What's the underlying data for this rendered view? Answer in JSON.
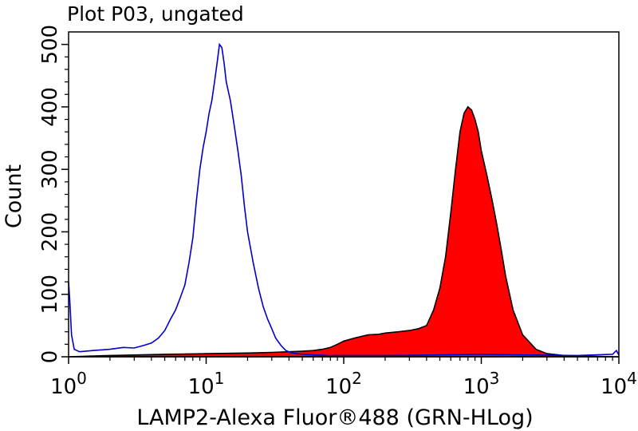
{
  "chart_data": {
    "type": "area",
    "title": "Plot P03, ungated",
    "xlabel": "LAMP2-Alexa Fluor®488 (GRN-HLog)",
    "ylabel": "Count",
    "x_scale": "log",
    "xlim": [
      1,
      10000
    ],
    "ylim": [
      0,
      520
    ],
    "x_ticks": [
      {
        "value": 1,
        "base": "10",
        "exp": "0"
      },
      {
        "value": 10,
        "base": "10",
        "exp": "1"
      },
      {
        "value": 100,
        "base": "10",
        "exp": "2"
      },
      {
        "value": 1000,
        "base": "10",
        "exp": "3"
      },
      {
        "value": 10000,
        "base": "10",
        "exp": "4"
      }
    ],
    "y_ticks": [
      {
        "value": 0,
        "label": "0"
      },
      {
        "value": 100,
        "label": "100"
      },
      {
        "value": 200,
        "label": "200"
      },
      {
        "value": 300,
        "label": "300"
      },
      {
        "value": 400,
        "label": "400"
      },
      {
        "value": 500,
        "label": "500"
      }
    ],
    "grid": false,
    "legend": "none",
    "series": [
      {
        "style": "line",
        "color": "#0000cc",
        "x": [
          1,
          1.02,
          1.05,
          1.1,
          1.2,
          1.5,
          2,
          2.5,
          3,
          3.5,
          4,
          4.5,
          5,
          5.5,
          6,
          6.5,
          7,
          7.5,
          8,
          8.5,
          9,
          9.5,
          10,
          10.5,
          11,
          11.5,
          12,
          12.5,
          13,
          13.5,
          14,
          15,
          16,
          17,
          18,
          19,
          20,
          22,
          24,
          26,
          28,
          30,
          32,
          35,
          38,
          42,
          50,
          60,
          80,
          100,
          200,
          500,
          1000,
          2000,
          5000,
          9000,
          9600,
          10000
        ],
        "y": [
          120,
          90,
          35,
          12,
          8,
          10,
          12,
          15,
          14,
          18,
          22,
          30,
          42,
          60,
          75,
          95,
          115,
          150,
          190,
          250,
          300,
          335,
          360,
          390,
          410,
          440,
          470,
          500,
          495,
          470,
          440,
          410,
          370,
          330,
          290,
          240,
          200,
          150,
          110,
          80,
          60,
          45,
          30,
          18,
          10,
          6,
          4,
          3,
          2,
          2,
          2,
          3,
          4,
          3,
          2,
          4,
          10,
          3
        ]
      },
      {
        "style": "filled",
        "color": "#ff0000",
        "outline": "#000000",
        "x": [
          1,
          2,
          5,
          10,
          20,
          30,
          40,
          50,
          60,
          70,
          80,
          90,
          100,
          120,
          150,
          180,
          200,
          250,
          300,
          350,
          400,
          450,
          500,
          550,
          600,
          650,
          700,
          750,
          800,
          850,
          900,
          950,
          1000,
          1100,
          1200,
          1300,
          1400,
          1500,
          1700,
          2000,
          2500,
          3000,
          4000,
          5000,
          10000
        ],
        "y": [
          0,
          2,
          4,
          5,
          6,
          7,
          8,
          9,
          10,
          12,
          15,
          20,
          25,
          30,
          35,
          36,
          38,
          40,
          42,
          45,
          50,
          75,
          110,
          160,
          230,
          300,
          360,
          390,
          400,
          395,
          380,
          360,
          330,
          290,
          250,
          210,
          170,
          130,
          75,
          35,
          12,
          5,
          2,
          1,
          0
        ]
      }
    ]
  }
}
